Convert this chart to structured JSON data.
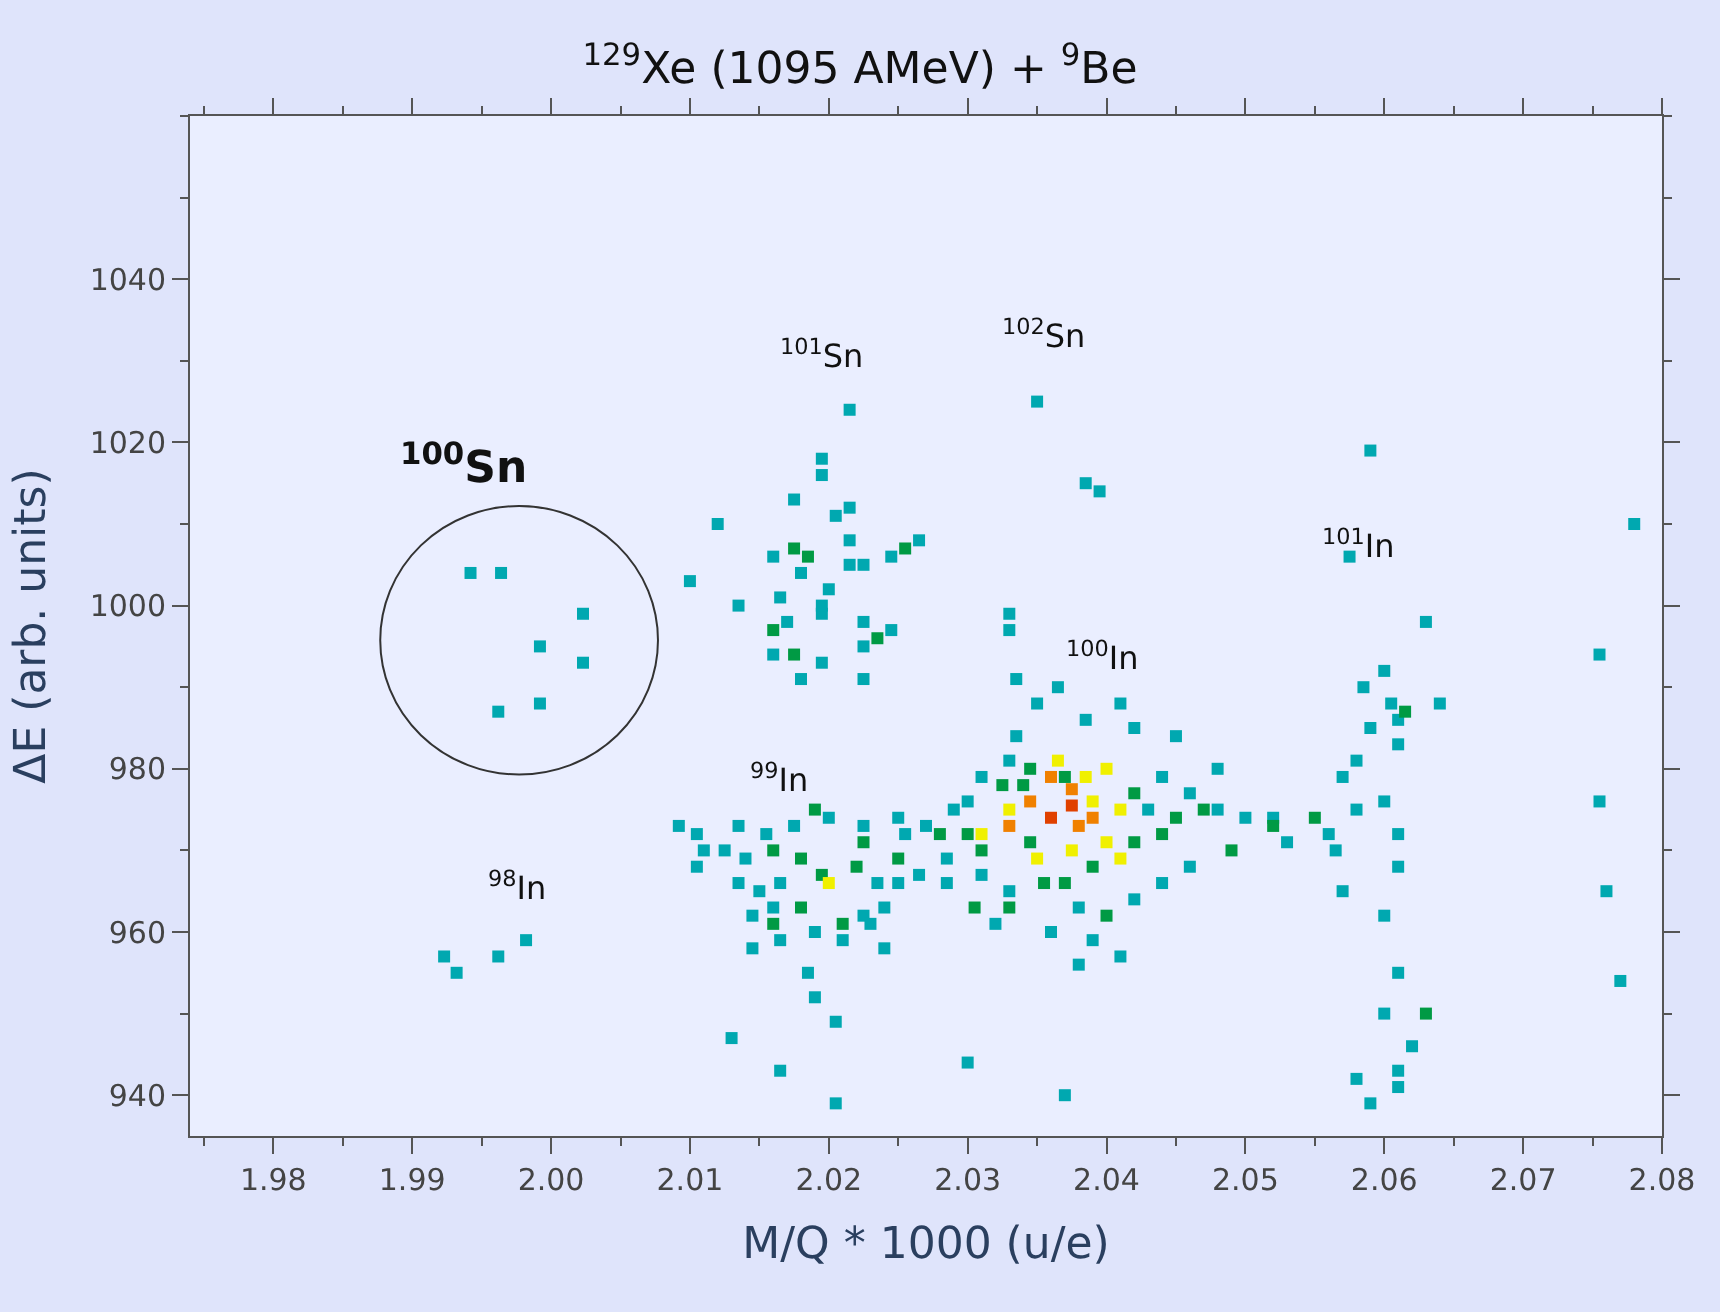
{
  "chart_data": {
    "type": "scatter",
    "title": "$^{129}$Xe (1095 AMeV) + $^{9}$Be",
    "xlabel": "M/Q * 1000 (u/e)",
    "ylabel": "ΔE (arb. units)",
    "marker": "square",
    "grid": false,
    "xlim": [
      1.974,
      2.08
    ],
    "ylim": [
      935,
      1060
    ],
    "xticks": [
      {
        "value": 1.98,
        "label": "1.98"
      },
      {
        "value": 1.99,
        "label": "1.99"
      },
      {
        "value": 2.0,
        "label": "2.00"
      },
      {
        "value": 2.01,
        "label": "2.01"
      },
      {
        "value": 2.02,
        "label": "2.02"
      },
      {
        "value": 2.03,
        "label": "2.03"
      },
      {
        "value": 2.04,
        "label": "2.04"
      },
      {
        "value": 2.05,
        "label": "2.05"
      },
      {
        "value": 2.06,
        "label": "2.06"
      },
      {
        "value": 2.07,
        "label": "2.07"
      },
      {
        "value": 2.08,
        "label": "2.08"
      }
    ],
    "yticks": [
      940,
      960,
      980,
      1000,
      1020,
      1040
    ],
    "series": [
      {
        "color": "#00a8b0",
        "x": [
          1.9942,
          1.9964,
          2.0023,
          1.9992,
          2.0023,
          1.9962,
          1.9992,
          1.9923,
          1.9932,
          1.9962,
          1.9982,
          2.0092,
          2.0215,
          2.0195,
          2.0195,
          2.0175,
          2.0215,
          2.012,
          2.0205,
          2.0215,
          2.0215,
          2.0225,
          2.0245,
          2.016,
          2.018,
          2.0165,
          2.02,
          2.0195,
          2.0225,
          2.0245,
          2.017,
          2.0225,
          2.016,
          2.0195,
          2.0225,
          2.018,
          2.01,
          2.0265,
          2.0135,
          2.0195,
          2.0135,
          2.0155,
          2.0175,
          2.02,
          2.0225,
          2.025,
          2.0125,
          2.014,
          2.0135,
          2.015,
          2.0165,
          2.0235,
          2.025,
          2.0265,
          2.0145,
          2.016,
          2.0225,
          2.024,
          2.0145,
          2.0165,
          2.019,
          2.021,
          2.023,
          2.024,
          2.0185,
          2.011,
          2.0285,
          2.0255,
          2.019,
          2.0205,
          2.013,
          2.0165,
          2.0205,
          2.0105,
          2.0285,
          2.03,
          2.0105,
          2.035,
          2.0385,
          2.041,
          2.042,
          2.045,
          2.0335,
          2.033,
          2.031,
          2.044,
          2.048,
          2.046,
          2.043,
          2.048,
          2.05,
          2.056,
          2.03,
          2.029,
          2.027,
          2.031,
          2.033,
          2.038,
          2.042,
          2.044,
          2.046,
          2.032,
          2.036,
          2.039,
          2.041,
          2.038,
          2.033,
          2.033,
          2.0335,
          2.0365,
          2.035,
          2.0385,
          2.0395,
          2.037,
          2.053,
          2.052,
          2.059,
          2.0575,
          2.063,
          2.0585,
          2.0605,
          2.061,
          2.064,
          2.06,
          2.059,
          2.061,
          2.058,
          2.057,
          2.058,
          2.06,
          2.061,
          2.0565,
          2.061,
          2.057,
          2.06,
          2.061,
          2.06,
          2.062,
          2.058,
          2.061,
          2.059,
          2.061,
          2.0755,
          2.0755,
          2.076,
          2.077,
          2.078
        ],
        "values": [
          1004,
          1004,
          999,
          995,
          993,
          987,
          988,
          957,
          955,
          957,
          959,
          973,
          1024,
          1018,
          1016,
          1013,
          1012,
          1010,
          1011,
          1008,
          1005,
          1005,
          1006,
          1006,
          1004,
          1001,
          1002,
          999,
          998,
          997,
          998,
          995,
          994,
          993,
          991,
          991,
          1003,
          1008,
          1000,
          1000,
          973,
          972,
          973,
          974,
          973,
          974,
          970,
          969,
          966,
          965,
          966,
          966,
          966,
          967,
          962,
          963,
          962,
          963,
          958,
          959,
          960,
          959,
          961,
          958,
          955,
          970,
          969,
          972,
          952,
          949,
          947,
          943,
          939,
          968,
          966,
          944,
          972,
          988,
          986,
          988,
          985,
          984,
          984,
          981,
          979,
          979,
          980,
          977,
          975,
          975,
          974,
          972,
          976,
          975,
          973,
          967,
          965,
          963,
          964,
          966,
          968,
          961,
          960,
          959,
          957,
          956,
          999,
          997,
          991,
          990,
          1025,
          1015,
          1014,
          940,
          971,
          974,
          1019,
          1006,
          998,
          990,
          988,
          986,
          988,
          992,
          985,
          983,
          981,
          979,
          975,
          976,
          972,
          970,
          968,
          965,
          962,
          955,
          950,
          946,
          942,
          943,
          939,
          941,
          994,
          976,
          965,
          954,
          1010
        ]
      },
      {
        "color": "#009a44",
        "x": [
          2.0175,
          2.0185,
          2.0255,
          2.0235,
          2.016,
          2.0175,
          2.019,
          2.016,
          2.018,
          2.0195,
          2.022,
          2.018,
          2.021,
          2.016,
          2.025,
          2.0225,
          2.0345,
          2.037,
          2.034,
          2.042,
          2.045,
          2.047,
          2.044,
          2.0325,
          2.031,
          2.028,
          2.03,
          2.0345,
          2.0355,
          2.037,
          2.039,
          2.033,
          2.04,
          2.0305,
          2.049,
          2.052,
          2.042,
          2.0615,
          2.063,
          2.055
        ],
        "values": [
          1007,
          1006,
          1007,
          996,
          997,
          994,
          975,
          970,
          969,
          967,
          968,
          963,
          961,
          961,
          969,
          971,
          980,
          979,
          978,
          977,
          974,
          975,
          972,
          978,
          970,
          972,
          972,
          971,
          966,
          966,
          968,
          963,
          962,
          963,
          970,
          973,
          971,
          987,
          950,
          974
        ]
      },
      {
        "color": "#f0f000",
        "x": [
          2.02,
          2.0365,
          2.0385,
          2.04,
          2.039,
          2.033,
          2.041,
          2.031,
          2.04,
          2.035,
          2.0375,
          2.041
        ],
        "values": [
          966,
          981,
          979,
          980,
          976,
          975,
          975,
          972,
          971,
          969,
          970,
          969
        ]
      },
      {
        "color": "#f08000",
        "x": [
          2.0345,
          2.0375,
          2.038,
          2.033,
          2.036,
          2.039
        ],
        "values": [
          976,
          977.5,
          973,
          973,
          979,
          974
        ]
      },
      {
        "color": "#e04000",
        "x": [
          2.0375,
          2.036
        ],
        "values": [
          975.5,
          974
        ]
      }
    ],
    "annotations": [
      "$^{100}$Sn",
      "$^{101}$Sn",
      "$^{102}$Sn",
      "$^{101}$In",
      "$^{100}$In",
      "$^{99}$In",
      "$^{98}$In"
    ]
  }
}
